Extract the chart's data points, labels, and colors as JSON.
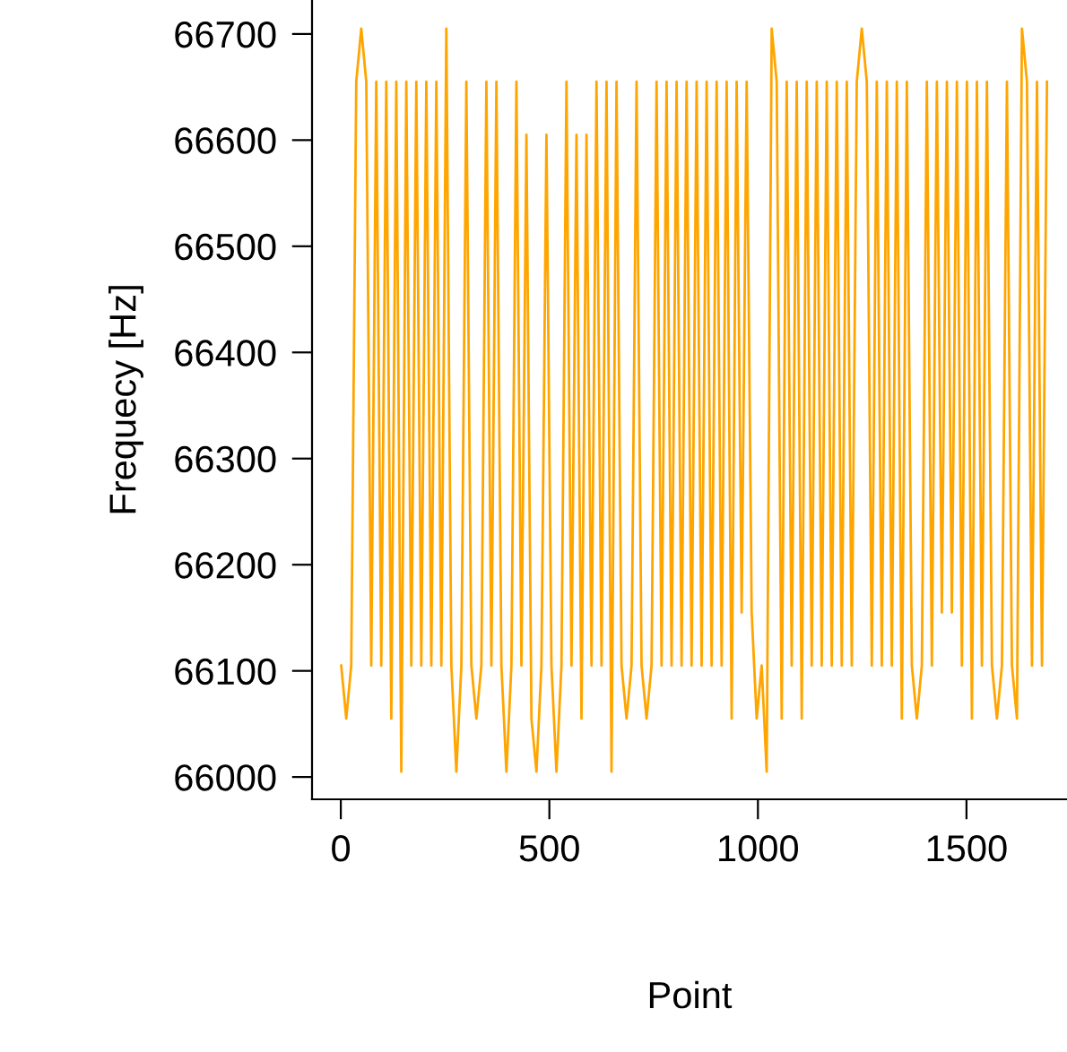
{
  "chart_data": {
    "type": "line",
    "xlabel": "Point",
    "ylabel": "Frequecy [Hz]",
    "xlim": [
      -69,
      1741
    ],
    "ylim": [
      65979,
      66732
    ],
    "xticks": [
      0,
      500,
      1000,
      1500
    ],
    "yticks": [
      66000,
      66100,
      66200,
      66300,
      66400,
      66500,
      66600,
      66700
    ],
    "grid": false,
    "legend": false,
    "marker": "none",
    "line_style": "solid",
    "series": [
      {
        "color": "#ffa500",
        "x": [
          1,
          13,
          25,
          37,
          49,
          61,
          73,
          85,
          97,
          109,
          121,
          133,
          145,
          157,
          169,
          181,
          193,
          205,
          217,
          229,
          241,
          253,
          265,
          277,
          289,
          301,
          313,
          325,
          337,
          349,
          361,
          373,
          385,
          397,
          409,
          421,
          433,
          445,
          457,
          469,
          481,
          493,
          505,
          517,
          529,
          541,
          553,
          565,
          577,
          589,
          601,
          613,
          625,
          637,
          649,
          661,
          673,
          685,
          697,
          709,
          721,
          733,
          745,
          757,
          769,
          781,
          793,
          805,
          817,
          829,
          841,
          853,
          865,
          877,
          889,
          901,
          913,
          925,
          937,
          949,
          961,
          973,
          985,
          997,
          1009,
          1021,
          1033,
          1045,
          1057,
          1069,
          1081,
          1093,
          1105,
          1117,
          1129,
          1141,
          1153,
          1165,
          1177,
          1189,
          1201,
          1213,
          1225,
          1237,
          1249,
          1261,
          1273,
          1285,
          1297,
          1309,
          1321,
          1333,
          1345,
          1357,
          1369,
          1381,
          1393,
          1405,
          1417,
          1429,
          1441,
          1453,
          1465,
          1477,
          1489,
          1501,
          1513,
          1525,
          1537,
          1549,
          1561,
          1573,
          1585,
          1597,
          1609,
          1621,
          1633,
          1645,
          1657,
          1669,
          1681,
          1693
        ],
        "values": [
          66105,
          66055,
          66105,
          66655,
          66705,
          66655,
          66105,
          66655,
          66105,
          66655,
          66055,
          66655,
          66005,
          66655,
          66105,
          66655,
          66105,
          66655,
          66105,
          66655,
          66105,
          66705,
          66105,
          66005,
          66105,
          66655,
          66105,
          66055,
          66105,
          66655,
          66105,
          66655,
          66105,
          66005,
          66105,
          66655,
          66105,
          66605,
          66055,
          66005,
          66105,
          66605,
          66105,
          66005,
          66105,
          66655,
          66105,
          66605,
          66055,
          66605,
          66105,
          66655,
          66105,
          66655,
          66005,
          66655,
          66105,
          66055,
          66105,
          66655,
          66105,
          66055,
          66105,
          66655,
          66105,
          66655,
          66105,
          66655,
          66105,
          66655,
          66105,
          66655,
          66105,
          66655,
          66105,
          66655,
          66105,
          66655,
          66055,
          66655,
          66155,
          66655,
          66155,
          66055,
          66105,
          66005,
          66705,
          66655,
          66055,
          66655,
          66105,
          66655,
          66055,
          66655,
          66105,
          66655,
          66105,
          66655,
          66105,
          66655,
          66105,
          66655,
          66105,
          66655,
          66705,
          66655,
          66105,
          66655,
          66105,
          66655,
          66105,
          66655,
          66055,
          66655,
          66105,
          66055,
          66105,
          66655,
          66105,
          66655,
          66155,
          66655,
          66155,
          66655,
          66105,
          66655,
          66055,
          66655,
          66105,
          66655,
          66105,
          66055,
          66105,
          66655,
          66105,
          66055,
          66705,
          66655,
          66105,
          66655,
          66105,
          66655
        ]
      }
    ]
  }
}
